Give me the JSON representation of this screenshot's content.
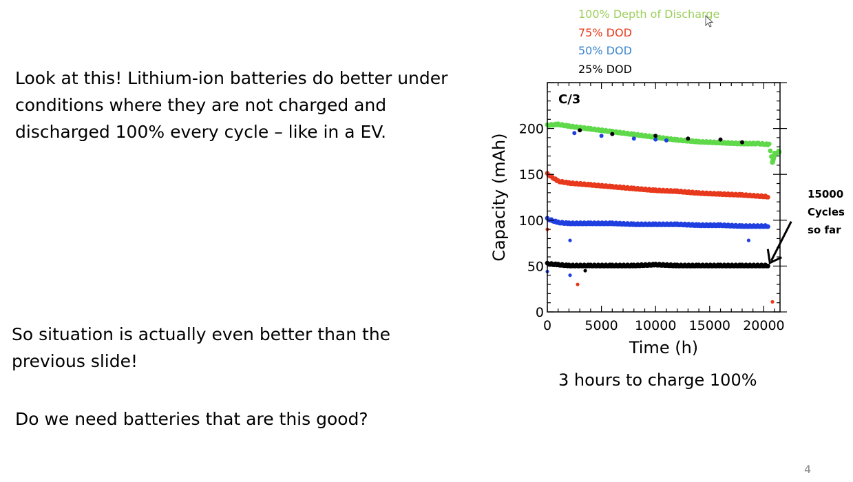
{
  "slide": {
    "paragraph_1": "Look at this!  Lithium-ion batteries do better under conditions where they are not charged and discharged 100% every cycle – like in a EV.",
    "paragraph_2": "So situation is actually even better than the previous slide!",
    "paragraph_3": "Do we need batteries that are this good?",
    "caption": "3 hours to charge 100%",
    "page_number": "4"
  },
  "colors": {
    "green": "#5fd94a",
    "red": "#e8391c",
    "blue": "#1f3fe0",
    "black": "#000000",
    "legend_green": "#9bcf5a",
    "legend_red": "#e8391c",
    "legend_blue": "#3a86cf",
    "legend_black": "#000000"
  },
  "chart_data": {
    "type": "scatter",
    "title": "",
    "panel_label": "C/3",
    "xlabel": "Time (h)",
    "ylabel": "Capacity (mAh)",
    "xlim": [
      0,
      21500
    ],
    "ylim": [
      0,
      250
    ],
    "xticks": [
      0,
      5000,
      10000,
      15000,
      20000
    ],
    "yticks": [
      0,
      50,
      100,
      150,
      200
    ],
    "legend_position": "above-chart",
    "grid": false,
    "series": [
      {
        "name": "100% Depth of Discharge",
        "color_key": "green",
        "points": [
          [
            0,
            203
          ],
          [
            1000,
            204
          ],
          [
            2000,
            202
          ],
          [
            4000,
            199
          ],
          [
            6000,
            196
          ],
          [
            8000,
            193
          ],
          [
            10000,
            190
          ],
          [
            12000,
            187
          ],
          [
            14000,
            185
          ],
          [
            16000,
            184
          ],
          [
            18000,
            183
          ],
          [
            19500,
            183
          ],
          [
            20500,
            182
          ],
          [
            20800,
            163
          ],
          [
            21000,
            172
          ],
          [
            21500,
            175
          ]
        ]
      },
      {
        "name": "75% DOD",
        "color_key": "red",
        "points": [
          [
            0,
            150
          ],
          [
            1000,
            142
          ],
          [
            2000,
            140
          ],
          [
            4000,
            138
          ],
          [
            6000,
            136
          ],
          [
            8000,
            134
          ],
          [
            10000,
            132
          ],
          [
            12000,
            131
          ],
          [
            14000,
            129
          ],
          [
            16000,
            128
          ],
          [
            18000,
            127
          ],
          [
            20500,
            125
          ],
          [
            0,
            90
          ],
          [
            2800,
            30
          ],
          [
            20800,
            11
          ]
        ]
      },
      {
        "name": "50% DOD",
        "color_key": "blue",
        "points": [
          [
            0,
            101
          ],
          [
            1000,
            97
          ],
          [
            2000,
            96
          ],
          [
            4000,
            96
          ],
          [
            6000,
            96
          ],
          [
            8000,
            95
          ],
          [
            10000,
            95
          ],
          [
            12000,
            95
          ],
          [
            14000,
            94
          ],
          [
            16000,
            94
          ],
          [
            18000,
            93
          ],
          [
            20500,
            93
          ],
          [
            0,
            44
          ],
          [
            2100,
            78
          ],
          [
            2100,
            40
          ],
          [
            18600,
            78
          ],
          [
            2500,
            195
          ],
          [
            5000,
            192
          ],
          [
            8000,
            189
          ],
          [
            10000,
            188
          ],
          [
            11000,
            187
          ]
        ]
      },
      {
        "name": "25% DOD",
        "color_key": "black",
        "points": [
          [
            0,
            52
          ],
          [
            1000,
            51
          ],
          [
            2000,
            50
          ],
          [
            4000,
            50
          ],
          [
            6000,
            50
          ],
          [
            8000,
            50
          ],
          [
            10000,
            51
          ],
          [
            12000,
            50
          ],
          [
            14000,
            50
          ],
          [
            16000,
            50
          ],
          [
            18000,
            50
          ],
          [
            20500,
            50
          ],
          [
            3500,
            45
          ],
          [
            3000,
            198
          ],
          [
            6000,
            194
          ],
          [
            10000,
            192
          ],
          [
            13000,
            189
          ],
          [
            16000,
            188
          ],
          [
            18000,
            185
          ]
        ]
      }
    ],
    "annotation": {
      "text_lines": [
        "15000",
        "Cycles",
        "so far"
      ],
      "arrow_target": [
        20500,
        52
      ]
    }
  }
}
